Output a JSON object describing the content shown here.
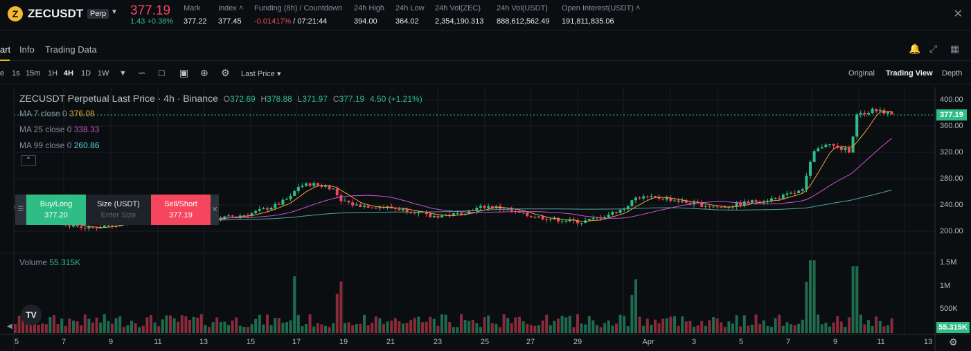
{
  "ticker": {
    "logo_letter": "Z",
    "symbol": "ZECUSDT",
    "badge": "Perp",
    "last_price": "377.19",
    "change": "1.43 +0.38%",
    "stats": [
      {
        "label": "Mark",
        "value": "377.22"
      },
      {
        "label": "Index ˄",
        "value": "377.45"
      },
      {
        "label": "Funding (8h) / Countdown",
        "value_neg": "-0.01417%",
        "value": " / 07:21:44"
      },
      {
        "label": "24h High",
        "value": "394.00"
      },
      {
        "label": "24h Low",
        "value": "364.02"
      },
      {
        "label": "24h Vol(ZEC)",
        "value": "2,354,190.313"
      },
      {
        "label": "24h Vol(USDT)",
        "value": "888,612,562.49"
      },
      {
        "label": "Open Interest(USDT) ˄",
        "value": "191,811,835.06"
      }
    ]
  },
  "tabs": [
    "art",
    "Info",
    "Trading Data"
  ],
  "toolbar": {
    "intervals": [
      "e",
      "1s",
      "15m",
      "1H",
      "4H",
      "1D",
      "1W"
    ],
    "active_interval": "4H",
    "price_type": "Last Price",
    "views": [
      "Original",
      "Trading View",
      "Depth"
    ],
    "active_view": "Trading View"
  },
  "chart": {
    "title": "ZECUSDT Perpetual Last Price · 4h · Binance",
    "ohlc": {
      "o_label": "O",
      "o": "372.69",
      "h_label": "H",
      "h": "378.88",
      "l_label": "L",
      "l": "371.97",
      "c_label": "C",
      "c": "377.19",
      "chg": "4.50 (+1.21%)"
    },
    "ma": [
      {
        "label": "MA 7 close 0",
        "value": "376.08",
        "color": "#f0a53a"
      },
      {
        "label": "MA 25 close 0",
        "value": "338.33",
        "color": "#d04ed8"
      },
      {
        "label": "MA 99 close 0",
        "value": "260.86",
        "color": "#5fd4e8"
      }
    ],
    "volume_label": "Volume",
    "volume_value": "55.315K",
    "current_price_tag": "377.19",
    "current_volume_tag": "55.315K",
    "price_axis": [
      "400.00",
      "360.00",
      "320.00",
      "280.00",
      "240.00",
      "200.00"
    ],
    "volume_axis": [
      "1.5M",
      "1M",
      "500K"
    ],
    "x_axis": [
      "5",
      "7",
      "9",
      "11",
      "13",
      "15",
      "17",
      "19",
      "21",
      "23",
      "25",
      "27",
      "29",
      "Apr",
      "3",
      "5",
      "7",
      "9",
      "11",
      "13"
    ]
  },
  "order_panel": {
    "buy_label": "Buy/Long",
    "buy_price": "377.20",
    "size_label": "Size (USDT)",
    "size_placeholder": "Enter Size",
    "sell_label": "Sell/Short",
    "sell_price": "377.19"
  },
  "colors": {
    "up": "#2ebd85",
    "down": "#f6465d",
    "up_vol": "#1f6b4e",
    "down_vol": "#8a2b39",
    "accent": "#f0b90b"
  }
}
